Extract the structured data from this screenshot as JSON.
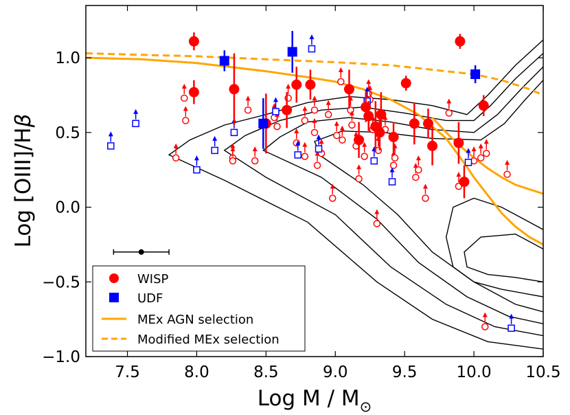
{
  "chart_data": {
    "type": "scatter",
    "xlabel": "Log M / M",
    "xlabel_sub": "⊙",
    "ylabel": "Log [OIII]/H",
    "ylabel_greek": "β",
    "xlim": [
      7.2,
      10.5
    ],
    "ylim": [
      -1.0,
      1.35
    ],
    "xticks": [
      "7.5",
      "8.0",
      "8.5",
      "9.0",
      "9.5",
      "10.0",
      "10.5"
    ],
    "yticks": [
      "1.0",
      "0.5",
      "0.0",
      "−0.5",
      "−1.0"
    ],
    "colors": {
      "wisp": "#ff0000",
      "udf": "#0000ff",
      "curve": "#ffa500",
      "contour": "#000000"
    },
    "legend": {
      "position": "lower-left",
      "entries": [
        {
          "label": "WISP"
        },
        {
          "label": "UDF"
        },
        {
          "label": "MEx AGN selection"
        },
        {
          "label": "Modified MEx selection"
        }
      ]
    },
    "series": [
      {
        "name": "WISP",
        "points": [
          {
            "x": 7.98,
            "y": 1.11,
            "err": 0.06
          },
          {
            "x": 7.98,
            "y": 0.77,
            "err": 0.08
          },
          {
            "x": 8.27,
            "y": 0.79,
            "err": 0.24
          },
          {
            "x": 8.5,
            "y": 0.56,
            "err": 0.2
          },
          {
            "x": 8.65,
            "y": 0.65,
            "err": 0.12
          },
          {
            "x": 8.72,
            "y": 0.82,
            "err": 0.12
          },
          {
            "x": 8.82,
            "y": 0.82,
            "err": 0.1
          },
          {
            "x": 9.1,
            "y": 0.79,
            "err": 0.13
          },
          {
            "x": 9.17,
            "y": 0.45,
            "err": 0.12
          },
          {
            "x": 9.22,
            "y": 0.67,
            "err": 0.1
          },
          {
            "x": 9.24,
            "y": 0.61,
            "err": 0.1
          },
          {
            "x": 9.29,
            "y": 0.54,
            "err": 0.17
          },
          {
            "x": 9.32,
            "y": 0.5,
            "err": 0.12
          },
          {
            "x": 9.33,
            "y": 0.62,
            "err": 0.15
          },
          {
            "x": 9.42,
            "y": 0.47,
            "err": 0.1
          },
          {
            "x": 9.51,
            "y": 0.83,
            "err": 0.05
          },
          {
            "x": 9.57,
            "y": 0.56,
            "err": 0.14
          },
          {
            "x": 9.67,
            "y": 0.56,
            "err": 0.1
          },
          {
            "x": 9.7,
            "y": 0.41,
            "err": 0.13
          },
          {
            "x": 9.89,
            "y": 0.43,
            "err": 0.14
          },
          {
            "x": 9.9,
            "y": 1.11,
            "err": 0.05
          },
          {
            "x": 9.93,
            "y": 0.17,
            "err": 0.11
          },
          {
            "x": 10.07,
            "y": 0.68,
            "err": 0.07
          }
        ],
        "limits": [
          {
            "x": 7.85,
            "y": 0.33
          },
          {
            "x": 7.91,
            "y": 0.73
          },
          {
            "x": 7.92,
            "y": 0.58
          },
          {
            "x": 8.26,
            "y": 0.33
          },
          {
            "x": 8.26,
            "y": 0.31
          },
          {
            "x": 8.37,
            "y": 0.65
          },
          {
            "x": 8.42,
            "y": 0.31
          },
          {
            "x": 8.56,
            "y": 0.6
          },
          {
            "x": 8.58,
            "y": 0.54
          },
          {
            "x": 8.66,
            "y": 0.73
          },
          {
            "x": 8.72,
            "y": 0.43
          },
          {
            "x": 8.78,
            "y": 0.58
          },
          {
            "x": 8.78,
            "y": 0.34
          },
          {
            "x": 8.85,
            "y": 0.65
          },
          {
            "x": 8.85,
            "y": 0.5
          },
          {
            "x": 8.87,
            "y": 0.28
          },
          {
            "x": 8.9,
            "y": 0.36
          },
          {
            "x": 8.95,
            "y": 0.62
          },
          {
            "x": 8.98,
            "y": 0.06
          },
          {
            "x": 9.01,
            "y": 0.48
          },
          {
            "x": 9.04,
            "y": 0.84
          },
          {
            "x": 9.05,
            "y": 0.45
          },
          {
            "x": 9.11,
            "y": 0.65
          },
          {
            "x": 9.12,
            "y": 0.55
          },
          {
            "x": 9.15,
            "y": 0.41
          },
          {
            "x": 9.17,
            "y": 0.19
          },
          {
            "x": 9.21,
            "y": 0.34
          },
          {
            "x": 9.24,
            "y": 0.76
          },
          {
            "x": 9.25,
            "y": 0.72
          },
          {
            "x": 9.27,
            "y": 0.52
          },
          {
            "x": 9.3,
            "y": -0.11
          },
          {
            "x": 9.31,
            "y": 0.38
          },
          {
            "x": 9.36,
            "y": 0.52
          },
          {
            "x": 9.42,
            "y": 0.28
          },
          {
            "x": 9.43,
            "y": 0.33
          },
          {
            "x": 9.58,
            "y": 0.2
          },
          {
            "x": 9.6,
            "y": 0.25
          },
          {
            "x": 9.65,
            "y": 0.06
          },
          {
            "x": 9.82,
            "y": 0.63
          },
          {
            "x": 9.89,
            "y": 0.14
          },
          {
            "x": 10.0,
            "y": 0.31
          },
          {
            "x": 10.05,
            "y": 0.33
          },
          {
            "x": 10.09,
            "y": 0.36
          },
          {
            "x": 10.24,
            "y": 0.22
          },
          {
            "x": 10.08,
            "y": -0.8
          }
        ]
      },
      {
        "name": "UDF",
        "points": [
          {
            "x": 8.2,
            "y": 0.98,
            "err": 0.07
          },
          {
            "x": 8.48,
            "y": 0.56,
            "err": 0.17
          },
          {
            "x": 8.69,
            "y": 1.04,
            "err": 0.14
          },
          {
            "x": 10.01,
            "y": 0.89,
            "err": 0.06
          }
        ],
        "limits": [
          {
            "x": 7.38,
            "y": 0.41
          },
          {
            "x": 7.56,
            "y": 0.56
          },
          {
            "x": 8.0,
            "y": 0.25
          },
          {
            "x": 8.13,
            "y": 0.38
          },
          {
            "x": 8.27,
            "y": 0.5
          },
          {
            "x": 8.57,
            "y": 0.64
          },
          {
            "x": 8.73,
            "y": 0.35
          },
          {
            "x": 8.83,
            "y": 1.06
          },
          {
            "x": 8.88,
            "y": 0.39
          },
          {
            "x": 9.23,
            "y": 0.71
          },
          {
            "x": 9.28,
            "y": 0.31
          },
          {
            "x": 9.41,
            "y": 0.17
          },
          {
            "x": 9.96,
            "y": 0.3
          },
          {
            "x": 10.27,
            "y": -0.81
          }
        ]
      }
    ],
    "mex_agn_curve": [
      [
        7.2,
        1.0
      ],
      [
        7.6,
        0.99
      ],
      [
        8.0,
        0.965
      ],
      [
        8.5,
        0.91
      ],
      [
        8.8,
        0.87
      ],
      [
        9.0,
        0.84
      ],
      [
        9.2,
        0.79
      ],
      [
        9.4,
        0.72
      ],
      [
        9.6,
        0.62
      ],
      [
        9.8,
        0.46
      ],
      [
        9.95,
        0.27
      ],
      [
        10.0,
        0.2
      ],
      [
        10.1,
        0.08
      ],
      [
        10.2,
        -0.04
      ],
      [
        10.3,
        -0.13
      ],
      [
        10.4,
        -0.2
      ],
      [
        10.5,
        -0.25
      ]
    ],
    "mex_agn_curve_upper": [
      [
        9.7,
        0.6
      ],
      [
        9.8,
        0.5
      ],
      [
        9.9,
        0.41
      ],
      [
        10.0,
        0.33
      ],
      [
        10.1,
        0.26
      ],
      [
        10.2,
        0.2
      ],
      [
        10.3,
        0.15
      ],
      [
        10.4,
        0.12
      ],
      [
        10.5,
        0.09
      ]
    ],
    "modified_mex_curve": [
      [
        7.2,
        1.03
      ],
      [
        7.6,
        1.02
      ],
      [
        8.0,
        1.01
      ],
      [
        8.5,
        0.99
      ],
      [
        9.0,
        0.97
      ],
      [
        9.4,
        0.95
      ],
      [
        9.8,
        0.91
      ],
      [
        10.0,
        0.89
      ],
      [
        10.2,
        0.85
      ],
      [
        10.4,
        0.79
      ],
      [
        10.5,
        0.75
      ]
    ],
    "contours": [
      [
        [
          10.5,
          1.12
        ],
        [
          10.3,
          0.95
        ],
        [
          10.1,
          0.75
        ],
        [
          9.95,
          0.62
        ],
        [
          9.7,
          0.68
        ],
        [
          9.4,
          0.72
        ],
        [
          9.1,
          0.74
        ],
        [
          8.8,
          0.7
        ],
        [
          8.5,
          0.62
        ],
        [
          8.2,
          0.55
        ],
        [
          7.95,
          0.45
        ],
        [
          7.8,
          0.35
        ],
        [
          8.2,
          0.18
        ],
        [
          8.8,
          -0.1
        ],
        [
          9.3,
          -0.5
        ],
        [
          9.7,
          -0.75
        ],
        [
          10.1,
          -0.9
        ],
        [
          10.5,
          -0.95
        ]
      ],
      [
        [
          10.5,
          1.03
        ],
        [
          10.3,
          0.86
        ],
        [
          10.12,
          0.68
        ],
        [
          10.0,
          0.58
        ],
        [
          9.8,
          0.58
        ],
        [
          9.5,
          0.63
        ],
        [
          9.2,
          0.67
        ],
        [
          8.9,
          0.65
        ],
        [
          8.6,
          0.58
        ],
        [
          8.35,
          0.48
        ],
        [
          8.2,
          0.38
        ],
        [
          8.5,
          0.2
        ],
        [
          9.0,
          -0.05
        ],
        [
          9.4,
          -0.4
        ],
        [
          9.8,
          -0.65
        ],
        [
          10.15,
          -0.8
        ],
        [
          10.5,
          -0.86
        ]
      ],
      [
        [
          10.5,
          0.94
        ],
        [
          10.35,
          0.8
        ],
        [
          10.17,
          0.62
        ],
        [
          10.0,
          0.5
        ],
        [
          9.7,
          0.52
        ],
        [
          9.4,
          0.57
        ],
        [
          9.1,
          0.6
        ],
        [
          8.8,
          0.57
        ],
        [
          8.6,
          0.47
        ],
        [
          8.48,
          0.38
        ],
        [
          8.9,
          0.2
        ],
        [
          9.3,
          -0.08
        ],
        [
          9.6,
          -0.37
        ],
        [
          9.95,
          -0.6
        ],
        [
          10.25,
          -0.73
        ],
        [
          10.5,
          -0.78
        ]
      ],
      [
        [
          10.5,
          0.85
        ],
        [
          10.37,
          0.72
        ],
        [
          10.22,
          0.56
        ],
        [
          10.05,
          0.45
        ],
        [
          9.7,
          0.46
        ],
        [
          9.35,
          0.5
        ],
        [
          9.05,
          0.51
        ],
        [
          8.85,
          0.44
        ],
        [
          8.9,
          0.34
        ],
        [
          9.2,
          0.15
        ],
        [
          9.45,
          -0.05
        ],
        [
          9.7,
          -0.3
        ],
        [
          10.0,
          -0.5
        ],
        [
          10.3,
          -0.65
        ],
        [
          10.5,
          -0.7
        ]
      ],
      [
        [
          10.5,
          -0.15
        ],
        [
          10.4,
          -0.1
        ],
        [
          10.2,
          0.0
        ],
        [
          10.0,
          0.06
        ],
        [
          9.85,
          0.0
        ],
        [
          9.8,
          -0.2
        ],
        [
          9.85,
          -0.4
        ],
        [
          10.0,
          -0.5
        ],
        [
          10.2,
          -0.55
        ],
        [
          10.5,
          -0.6
        ]
      ],
      [
        [
          10.5,
          -0.28
        ],
        [
          10.3,
          -0.18
        ],
        [
          10.05,
          -0.2
        ],
        [
          9.93,
          -0.3
        ],
        [
          9.95,
          -0.4
        ],
        [
          10.1,
          -0.45
        ],
        [
          10.3,
          -0.47
        ],
        [
          10.5,
          -0.5
        ]
      ]
    ],
    "typical_error": {
      "x": 7.6,
      "y": -0.3,
      "xerr": 0.2
    }
  }
}
